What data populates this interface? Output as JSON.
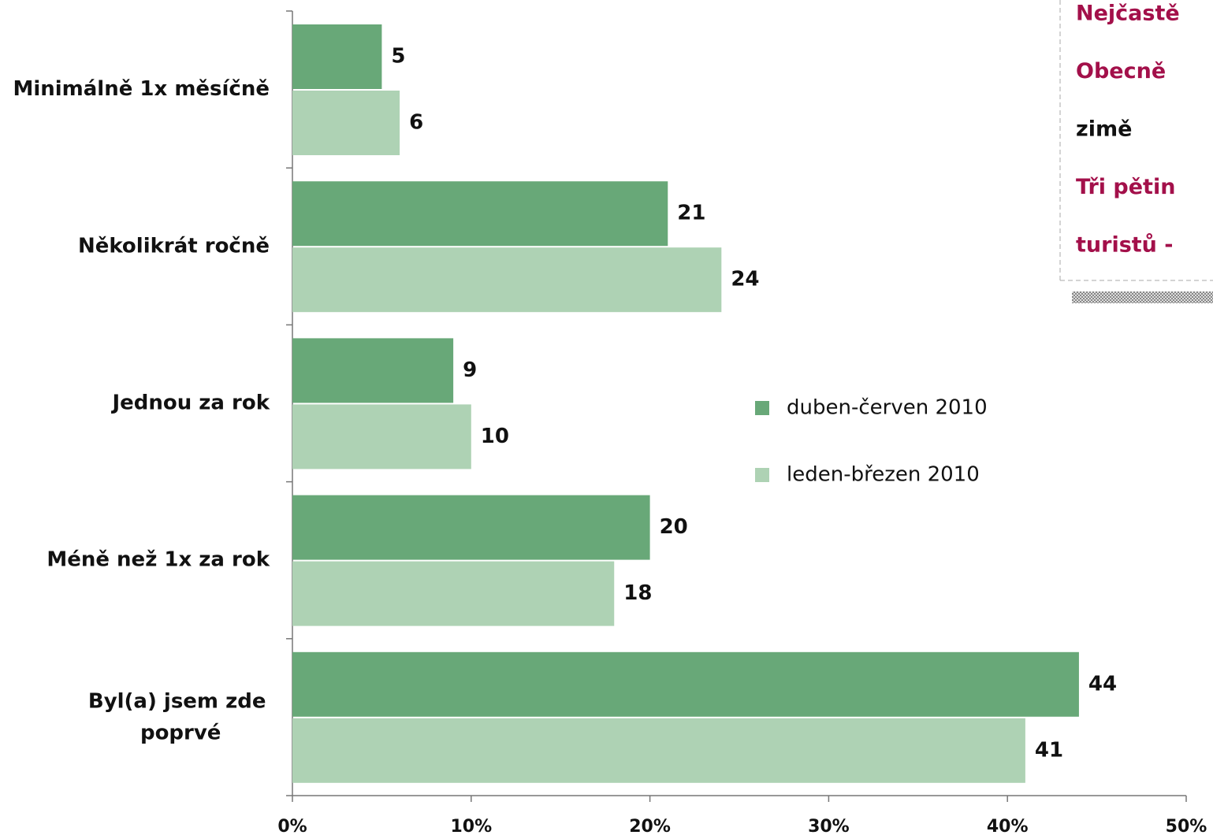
{
  "chart_data": {
    "type": "bar",
    "orientation": "horizontal",
    "categories": [
      "Minimálně 1x měsíčně",
      "Několikrát ročně",
      "Jednou za rok",
      "Méně než 1x za rok",
      "Byl(a) jsem zde poprvé"
    ],
    "series": [
      {
        "name": "duben-červen 2010",
        "color": "#68a878",
        "values": [
          5,
          21,
          9,
          20,
          44
        ]
      },
      {
        "name": "leden-březen 2010",
        "color": "#aed2b4",
        "values": [
          6,
          24,
          10,
          18,
          41
        ]
      }
    ],
    "xlim": [
      0,
      50
    ],
    "xticks": [
      {
        "value": 0,
        "label": "0%"
      },
      {
        "value": 10,
        "label": "10%"
      },
      {
        "value": 20,
        "label": "20%"
      },
      {
        "value": 30,
        "label": "30%"
      },
      {
        "value": 40,
        "label": "40%"
      },
      {
        "value": 50,
        "label": "50%"
      }
    ],
    "annotations": [
      {
        "text": "Nejčastě",
        "color": "#a3104a"
      },
      {
        "text": "Obecně",
        "color": "#a3104a"
      },
      {
        "text": "zimě",
        "color": "#111111"
      },
      {
        "text": "Tři pětin",
        "color": "#a3104a"
      },
      {
        "text": "turistů -",
        "color": "#a3104a"
      }
    ]
  }
}
